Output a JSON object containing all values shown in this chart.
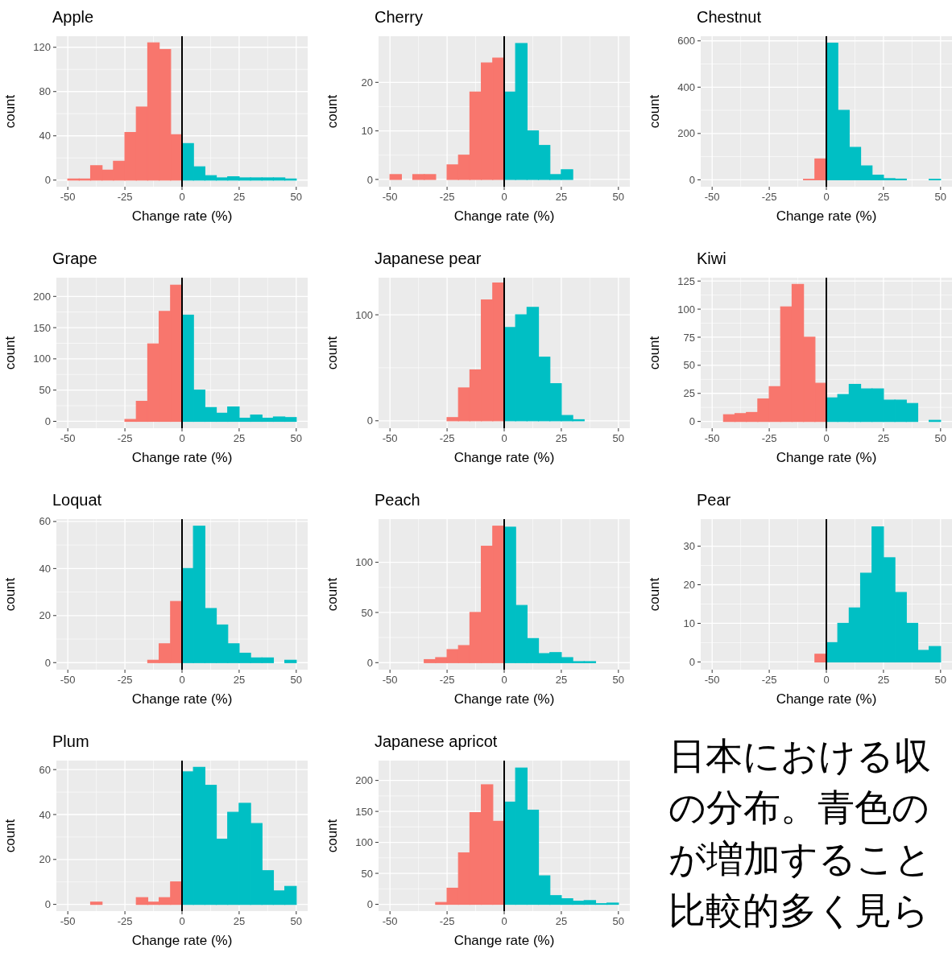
{
  "chart_data": [
    {
      "type": "histogram",
      "title": "Apple",
      "xlabel": "Change rate (%)",
      "ylabel": "count",
      "bins": [
        -50,
        -45,
        -40,
        -35,
        -30,
        -25,
        -20,
        -15,
        -10,
        -5,
        0,
        5,
        10,
        15,
        20,
        25,
        30,
        35,
        40,
        45,
        50
      ],
      "values": [
        1,
        1,
        13,
        9,
        17,
        43,
        66,
        124,
        118,
        41,
        33,
        12,
        4,
        2,
        3,
        2,
        2,
        2,
        2,
        1
      ],
      "colors": [
        "#f8766d",
        "#f8766d",
        "#f8766d",
        "#f8766d",
        "#f8766d",
        "#f8766d",
        "#f8766d",
        "#f8766d",
        "#f8766d",
        "#f8766d",
        "#00bfc4",
        "#00bfc4",
        "#00bfc4",
        "#00bfc4",
        "#00bfc4",
        "#00bfc4",
        "#00bfc4",
        "#00bfc4",
        "#00bfc4",
        "#00bfc4"
      ],
      "xlim": [
        -55,
        55
      ],
      "xticks": [
        -50,
        -25,
        0,
        25,
        50
      ],
      "ylim": [
        -6,
        130
      ],
      "yticks": [
        0,
        40,
        80,
        120
      ],
      "grid": true,
      "ref_lines": [
        {
          "axis": "x",
          "value": 0,
          "color": "#000000"
        }
      ]
    },
    {
      "type": "histogram",
      "title": "Cherry",
      "xlabel": "Change rate (%)",
      "ylabel": "count",
      "bins": [
        -50,
        -45,
        -40,
        -35,
        -30,
        -25,
        -20,
        -15,
        -10,
        -5,
        0,
        5,
        10,
        15,
        20,
        25,
        30,
        35,
        40,
        45,
        50
      ],
      "values": [
        1,
        0,
        1,
        1,
        0,
        3,
        5,
        18,
        24,
        25,
        18,
        28,
        10,
        7,
        1,
        2,
        0,
        0,
        0,
        0
      ],
      "colors": [
        "#f8766d",
        "#f8766d",
        "#f8766d",
        "#f8766d",
        "#f8766d",
        "#f8766d",
        "#f8766d",
        "#f8766d",
        "#f8766d",
        "#f8766d",
        "#00bfc4",
        "#00bfc4",
        "#00bfc4",
        "#00bfc4",
        "#00bfc4",
        "#00bfc4",
        "#00bfc4",
        "#00bfc4",
        "#00bfc4",
        "#00bfc4"
      ],
      "xlim": [
        -55,
        55
      ],
      "xticks": [
        -50,
        -25,
        0,
        25,
        50
      ],
      "ylim": [
        -1.5,
        29.5
      ],
      "yticks": [
        0,
        10,
        20
      ],
      "grid": true,
      "ref_lines": [
        {
          "axis": "x",
          "value": 0,
          "color": "#000000"
        }
      ]
    },
    {
      "type": "histogram",
      "title": "Chestnut",
      "xlabel": "Change rate (%)",
      "ylabel": "count",
      "bins": [
        -50,
        -45,
        -40,
        -35,
        -30,
        -25,
        -20,
        -15,
        -10,
        -5,
        0,
        5,
        10,
        15,
        20,
        25,
        30,
        35,
        40,
        45,
        50
      ],
      "values": [
        0,
        0,
        0,
        0,
        0,
        0,
        0,
        0,
        2,
        90,
        590,
        300,
        140,
        60,
        20,
        5,
        3,
        0,
        0,
        2
      ],
      "colors": [
        "#f8766d",
        "#f8766d",
        "#f8766d",
        "#f8766d",
        "#f8766d",
        "#f8766d",
        "#f8766d",
        "#f8766d",
        "#f8766d",
        "#f8766d",
        "#00bfc4",
        "#00bfc4",
        "#00bfc4",
        "#00bfc4",
        "#00bfc4",
        "#00bfc4",
        "#00bfc4",
        "#00bfc4",
        "#00bfc4",
        "#00bfc4"
      ],
      "xlim": [
        -55,
        55
      ],
      "xticks": [
        -50,
        -25,
        0,
        25,
        50
      ],
      "ylim": [
        -30,
        620
      ],
      "yticks": [
        0,
        200,
        400,
        600
      ],
      "grid": true,
      "ref_lines": [
        {
          "axis": "x",
          "value": 0,
          "color": "#000000"
        }
      ]
    },
    {
      "type": "histogram",
      "title": "Grape",
      "xlabel": "Change rate (%)",
      "ylabel": "count",
      "bins": [
        -50,
        -45,
        -40,
        -35,
        -30,
        -25,
        -20,
        -15,
        -10,
        -5,
        0,
        5,
        10,
        15,
        20,
        25,
        30,
        35,
        40,
        45,
        50
      ],
      "values": [
        0,
        0,
        0,
        0,
        0,
        3,
        32,
        124,
        176,
        218,
        170,
        50,
        22,
        13,
        23,
        5,
        10,
        5,
        7,
        6
      ],
      "colors": [
        "#f8766d",
        "#f8766d",
        "#f8766d",
        "#f8766d",
        "#f8766d",
        "#f8766d",
        "#f8766d",
        "#f8766d",
        "#f8766d",
        "#f8766d",
        "#00bfc4",
        "#00bfc4",
        "#00bfc4",
        "#00bfc4",
        "#00bfc4",
        "#00bfc4",
        "#00bfc4",
        "#00bfc4",
        "#00bfc4",
        "#00bfc4"
      ],
      "xlim": [
        -55,
        55
      ],
      "xticks": [
        -50,
        -25,
        0,
        25,
        50
      ],
      "ylim": [
        -11,
        230
      ],
      "yticks": [
        0,
        50,
        100,
        150,
        200
      ],
      "grid": true,
      "ref_lines": [
        {
          "axis": "x",
          "value": 0,
          "color": "#000000"
        }
      ]
    },
    {
      "type": "histogram",
      "title": "Japanese pear",
      "xlabel": "Change rate (%)",
      "ylabel": "count",
      "bins": [
        -50,
        -45,
        -40,
        -35,
        -30,
        -25,
        -20,
        -15,
        -10,
        -5,
        0,
        5,
        10,
        15,
        20,
        25,
        30,
        35,
        40,
        45,
        50
      ],
      "values": [
        0,
        0,
        0,
        0,
        0,
        3,
        31,
        48,
        114,
        130,
        88,
        100,
        107,
        60,
        35,
        5,
        1,
        0,
        0,
        0
      ],
      "colors": [
        "#f8766d",
        "#f8766d",
        "#f8766d",
        "#f8766d",
        "#f8766d",
        "#f8766d",
        "#f8766d",
        "#f8766d",
        "#f8766d",
        "#f8766d",
        "#00bfc4",
        "#00bfc4",
        "#00bfc4",
        "#00bfc4",
        "#00bfc4",
        "#00bfc4",
        "#00bfc4",
        "#00bfc4",
        "#00bfc4",
        "#00bfc4"
      ],
      "xlim": [
        -55,
        55
      ],
      "xticks": [
        -50,
        -25,
        0,
        25,
        50
      ],
      "ylim": [
        -7,
        135
      ],
      "yticks": [
        0,
        100
      ],
      "grid": true,
      "ref_lines": [
        {
          "axis": "x",
          "value": 0,
          "color": "#000000"
        }
      ]
    },
    {
      "type": "histogram",
      "title": "Kiwi",
      "xlabel": "Change rate (%)",
      "ylabel": "count",
      "bins": [
        -50,
        -45,
        -40,
        -35,
        -30,
        -25,
        -20,
        -15,
        -10,
        -5,
        0,
        5,
        10,
        15,
        20,
        25,
        30,
        35,
        40,
        45,
        50
      ],
      "values": [
        0,
        6,
        7,
        8,
        20,
        31,
        102,
        122,
        75,
        34,
        21,
        24,
        33,
        29,
        29,
        19,
        19,
        16,
        0,
        1
      ],
      "colors": [
        "#f8766d",
        "#f8766d",
        "#f8766d",
        "#f8766d",
        "#f8766d",
        "#f8766d",
        "#f8766d",
        "#f8766d",
        "#f8766d",
        "#f8766d",
        "#00bfc4",
        "#00bfc4",
        "#00bfc4",
        "#00bfc4",
        "#00bfc4",
        "#00bfc4",
        "#00bfc4",
        "#00bfc4",
        "#00bfc4",
        "#00bfc4"
      ],
      "xlim": [
        -55,
        55
      ],
      "xticks": [
        -50,
        -25,
        0,
        25,
        50
      ],
      "ylim": [
        -6,
        128
      ],
      "yticks": [
        0,
        25,
        50,
        75,
        100,
        125
      ],
      "grid": true,
      "ref_lines": [
        {
          "axis": "x",
          "value": 0,
          "color": "#000000"
        }
      ]
    },
    {
      "type": "histogram",
      "title": "Loquat",
      "xlabel": "Change rate (%)",
      "ylabel": "count",
      "bins": [
        -50,
        -45,
        -40,
        -35,
        -30,
        -25,
        -20,
        -15,
        -10,
        -5,
        0,
        5,
        10,
        15,
        20,
        25,
        30,
        35,
        40,
        45,
        50
      ],
      "values": [
        0,
        0,
        0,
        0,
        0,
        0,
        0,
        1,
        8,
        26,
        40,
        58,
        23,
        16,
        8,
        4,
        2,
        2,
        0,
        1
      ],
      "colors": [
        "#f8766d",
        "#f8766d",
        "#f8766d",
        "#f8766d",
        "#f8766d",
        "#f8766d",
        "#f8766d",
        "#f8766d",
        "#f8766d",
        "#f8766d",
        "#00bfc4",
        "#00bfc4",
        "#00bfc4",
        "#00bfc4",
        "#00bfc4",
        "#00bfc4",
        "#00bfc4",
        "#00bfc4",
        "#00bfc4",
        "#00bfc4"
      ],
      "xlim": [
        -55,
        55
      ],
      "xticks": [
        -50,
        -25,
        0,
        25,
        50
      ],
      "ylim": [
        -3,
        61
      ],
      "yticks": [
        0,
        20,
        40,
        60
      ],
      "grid": true,
      "ref_lines": [
        {
          "axis": "x",
          "value": 0,
          "color": "#000000"
        }
      ]
    },
    {
      "type": "histogram",
      "title": "Peach",
      "xlabel": "Change rate (%)",
      "ylabel": "count",
      "bins": [
        -50,
        -45,
        -40,
        -35,
        -30,
        -25,
        -20,
        -15,
        -10,
        -5,
        0,
        5,
        10,
        15,
        20,
        25,
        30,
        35,
        40,
        45,
        50
      ],
      "values": [
        0,
        0,
        0,
        3,
        5,
        13,
        17,
        50,
        116,
        136,
        135,
        57,
        24,
        9,
        10,
        5,
        1,
        1,
        0,
        0
      ],
      "colors": [
        "#f8766d",
        "#f8766d",
        "#f8766d",
        "#f8766d",
        "#f8766d",
        "#f8766d",
        "#f8766d",
        "#f8766d",
        "#f8766d",
        "#f8766d",
        "#00bfc4",
        "#00bfc4",
        "#00bfc4",
        "#00bfc4",
        "#00bfc4",
        "#00bfc4",
        "#00bfc4",
        "#00bfc4",
        "#00bfc4",
        "#00bfc4"
      ],
      "xlim": [
        -55,
        55
      ],
      "xticks": [
        -50,
        -25,
        0,
        25,
        50
      ],
      "ylim": [
        -7,
        143
      ],
      "yticks": [
        0,
        50,
        100
      ],
      "grid": true,
      "ref_lines": [
        {
          "axis": "x",
          "value": 0,
          "color": "#000000"
        }
      ]
    },
    {
      "type": "histogram",
      "title": "Pear",
      "xlabel": "Change rate (%)",
      "ylabel": "count",
      "bins": [
        -50,
        -45,
        -40,
        -35,
        -30,
        -25,
        -20,
        -15,
        -10,
        -5,
        0,
        5,
        10,
        15,
        20,
        25,
        30,
        35,
        40,
        45,
        50
      ],
      "values": [
        0,
        0,
        0,
        0,
        0,
        0,
        0,
        0,
        0,
        2,
        5,
        10,
        14,
        23,
        35,
        27,
        18,
        10,
        3,
        4
      ],
      "colors": [
        "#f8766d",
        "#f8766d",
        "#f8766d",
        "#f8766d",
        "#f8766d",
        "#f8766d",
        "#f8766d",
        "#f8766d",
        "#f8766d",
        "#f8766d",
        "#00bfc4",
        "#00bfc4",
        "#00bfc4",
        "#00bfc4",
        "#00bfc4",
        "#00bfc4",
        "#00bfc4",
        "#00bfc4",
        "#00bfc4",
        "#00bfc4"
      ],
      "xlim": [
        -55,
        55
      ],
      "xticks": [
        -50,
        -25,
        0,
        25,
        50
      ],
      "ylim": [
        -2,
        37
      ],
      "yticks": [
        0,
        10,
        20,
        30
      ],
      "grid": true,
      "ref_lines": [
        {
          "axis": "x",
          "value": 0,
          "color": "#000000"
        }
      ]
    },
    {
      "type": "histogram",
      "title": "Plum",
      "xlabel": "Change rate (%)",
      "ylabel": "count",
      "bins": [
        -50,
        -45,
        -40,
        -35,
        -30,
        -25,
        -20,
        -15,
        -10,
        -5,
        0,
        5,
        10,
        15,
        20,
        25,
        30,
        35,
        40,
        45,
        50
      ],
      "values": [
        0,
        0,
        1,
        0,
        0,
        0,
        3,
        1,
        3,
        10,
        59,
        61,
        53,
        29,
        41,
        45,
        36,
        15,
        6,
        8
      ],
      "colors": [
        "#f8766d",
        "#f8766d",
        "#f8766d",
        "#f8766d",
        "#f8766d",
        "#f8766d",
        "#f8766d",
        "#f8766d",
        "#f8766d",
        "#f8766d",
        "#00bfc4",
        "#00bfc4",
        "#00bfc4",
        "#00bfc4",
        "#00bfc4",
        "#00bfc4",
        "#00bfc4",
        "#00bfc4",
        "#00bfc4",
        "#00bfc4"
      ],
      "xlim": [
        -55,
        55
      ],
      "xticks": [
        -50,
        -25,
        0,
        25,
        50
      ],
      "ylim": [
        -3,
        64
      ],
      "yticks": [
        0,
        20,
        40,
        60
      ],
      "grid": true,
      "ref_lines": [
        {
          "axis": "x",
          "value": 0,
          "color": "#000000"
        }
      ]
    },
    {
      "type": "histogram",
      "title": "Japanese apricot",
      "xlabel": "Change rate (%)",
      "ylabel": "count",
      "bins": [
        -50,
        -45,
        -40,
        -35,
        -30,
        -25,
        -20,
        -15,
        -10,
        -5,
        0,
        5,
        10,
        15,
        20,
        25,
        30,
        35,
        40,
        45,
        50
      ],
      "values": [
        0,
        0,
        0,
        0,
        3,
        26,
        83,
        148,
        193,
        134,
        165,
        220,
        152,
        46,
        14,
        9,
        5,
        6,
        1,
        2
      ],
      "colors": [
        "#f8766d",
        "#f8766d",
        "#f8766d",
        "#f8766d",
        "#f8766d",
        "#f8766d",
        "#f8766d",
        "#f8766d",
        "#f8766d",
        "#f8766d",
        "#00bfc4",
        "#00bfc4",
        "#00bfc4",
        "#00bfc4",
        "#00bfc4",
        "#00bfc4",
        "#00bfc4",
        "#00bfc4",
        "#00bfc4",
        "#00bfc4"
      ],
      "xlim": [
        -55,
        55
      ],
      "xticks": [
        -50,
        -25,
        0,
        25,
        50
      ],
      "ylim": [
        -11,
        232
      ],
      "yticks": [
        0,
        50,
        100,
        150,
        200
      ],
      "grid": true,
      "ref_lines": [
        {
          "axis": "x",
          "value": 0,
          "color": "#000000"
        }
      ]
    },
    {
      "type": "other",
      "annotations": [
        "日本における収",
        "の分布。青色の",
        "が増加すること",
        "比較的多く見ら"
      ]
    }
  ]
}
